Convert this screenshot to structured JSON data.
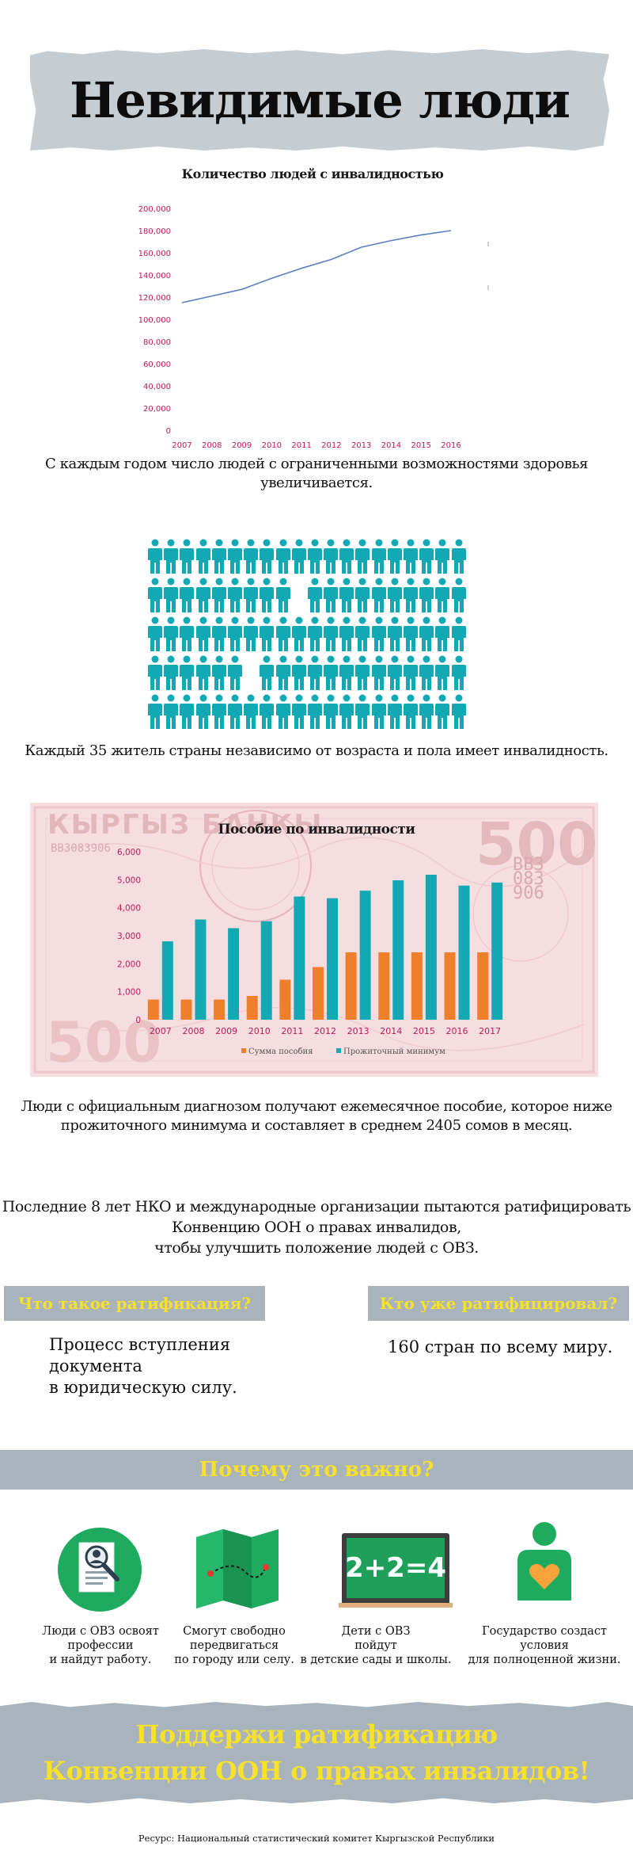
{
  "title": "Невидимые люди",
  "chart_data": [
    {
      "type": "line",
      "title": "Количество людей с инвалидностью",
      "x": [
        "2007",
        "2008",
        "2009",
        "2010",
        "2011",
        "2012",
        "2013",
        "2014",
        "2015",
        "2016"
      ],
      "values": [
        115000,
        121000,
        127000,
        137000,
        146000,
        154000,
        165000,
        171000,
        176000,
        180000
      ],
      "ylim": [
        0,
        200000
      ],
      "yticks": [
        "0",
        "20,000",
        "40,000",
        "60,000",
        "80,000",
        "100,000",
        "120,000",
        "140,000",
        "160,000",
        "180,000",
        "200,000"
      ],
      "line_color": "#5b7fc4",
      "tick_color": "#c2185b"
    },
    {
      "type": "bar",
      "title": "Пособие по инвалидности",
      "categories": [
        "2007",
        "2008",
        "2009",
        "2010",
        "2011",
        "2012",
        "2013",
        "2014",
        "2015",
        "2016",
        "2017"
      ],
      "series": [
        {
          "name": "Сумма пособия",
          "color": "#f07f2b",
          "values": [
            720,
            720,
            720,
            850,
            1430,
            1880,
            2405,
            2405,
            2405,
            2405,
            2405
          ]
        },
        {
          "name": "Прожиточный минимум",
          "color": "#13a9b4",
          "values": [
            2800,
            3580,
            3270,
            3520,
            4400,
            4340,
            4610,
            4980,
            5180,
            4790,
            4900
          ]
        }
      ],
      "ylim": [
        0,
        6000
      ],
      "yticks": [
        "0",
        "1,000",
        "2,000",
        "3,000",
        "4,000",
        "5,000",
        "6,000"
      ],
      "legend": "bottom",
      "tick_color": "#c2185b"
    }
  ],
  "captions": {
    "growth": "С каждым годом число людей с ограниченными возможностями здоровья увеличивается.",
    "every35": "Каждый 35 житель страны независимо от возраста и пола имеет инвалидность.",
    "benefit_1": "Люди с официальным диагнозом получают ежемесячное пособие, которое ниже",
    "benefit_2": "прожиточного минимума и составляет в среднем 2405 сомов в месяц.",
    "ngo_1": "Последние 8 лет НКО и международные организации пытаются ратифицировать",
    "ngo_2": "Конвенцию ООН о правах инвалидов,",
    "ngo_3": "чтобы улучшить положение людей с ОВЗ."
  },
  "pictogram": {
    "total": 100,
    "rows": 5,
    "cols": 20,
    "color": "#13a9b4",
    "highlight": [
      29,
      66
    ]
  },
  "ratification": {
    "what_title": "Что такое ратификация?",
    "what_line1": "Процесс вступления",
    "what_line2": "документа",
    "what_line3": "в юридическую силу.",
    "who_title": "Кто уже ратифицировал?",
    "who_text": "160 стран по всему миру."
  },
  "why": {
    "title": "Почему это важно?",
    "items": [
      {
        "icon": "resume-magnifier-icon",
        "line1": "Люди с ОВЗ освоят",
        "line2": "профессии",
        "line3": "и найдут работу."
      },
      {
        "icon": "map-route-icon",
        "line1": "Смогут свободно",
        "line2": "передвигаться",
        "line3": "по городу или селу."
      },
      {
        "icon": "chalkboard-icon",
        "board": "2+2=4",
        "line1": "Дети с ОВЗ",
        "line2": "пойдут",
        "line3": "в детские сады и школы."
      },
      {
        "icon": "person-heart-icon",
        "line1": "Государство создаст",
        "line2": "условия",
        "line3": "для полноценной жизни."
      }
    ]
  },
  "cta": {
    "line1": "Поддержи ратификацию",
    "line2": "Конвенции ООН о правах инвалидов!"
  },
  "source": "Ресурс: Национальный статистический комитет Кыргызской Республики",
  "banknote": {
    "text1": "КЫРГЫЗ",
    "text2": "БАНКЫ",
    "serial": "ВВ3083906",
    "value": "500"
  }
}
